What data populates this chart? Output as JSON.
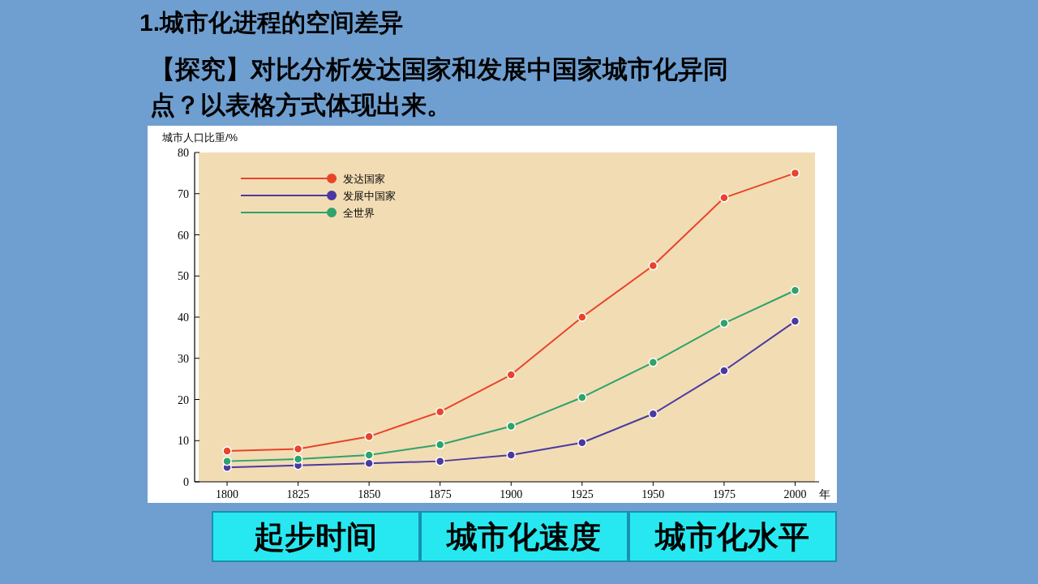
{
  "chart_data": {
    "type": "line",
    "title": "1.城市化进程的空间差异",
    "subtitle": "【探究】对比分析发达国家和发展中国家城市化异同点？以表格方式体现出来。",
    "ylabel": "城市人口比重/%",
    "xlabel": "年",
    "x": [
      1800,
      1825,
      1850,
      1875,
      1900,
      1925,
      1950,
      1975,
      2000
    ],
    "series": [
      {
        "name": "发达国家",
        "color": "#e8442a",
        "values": [
          7.5,
          8,
          11,
          17,
          26,
          40,
          52.5,
          69,
          75
        ]
      },
      {
        "name": "发展中国家",
        "color": "#4a3aa0",
        "values": [
          3.5,
          4,
          4.5,
          5,
          6.5,
          9.5,
          16.5,
          27,
          39
        ]
      },
      {
        "name": "全世界",
        "color": "#2ea36a",
        "values": [
          5,
          5.5,
          6.5,
          9,
          13.5,
          20.5,
          29,
          38.5,
          46.5
        ]
      }
    ],
    "xlim": [
      1790,
      2007
    ],
    "xticks": [
      1800,
      1825,
      1850,
      1875,
      1900,
      1925,
      1950,
      1975,
      2000
    ],
    "ylim": [
      0,
      80
    ],
    "yticks": [
      0,
      10,
      20,
      30,
      40,
      50,
      60,
      70,
      80
    ],
    "marker": "circle",
    "line_style": "solid",
    "grid": false,
    "legend": "top left",
    "annotations": [
      "起步时间",
      "城市化速度",
      "城市化水平"
    ]
  }
}
